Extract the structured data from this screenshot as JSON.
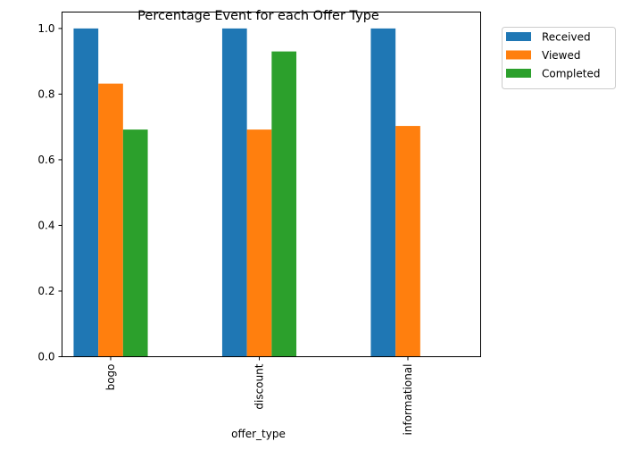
{
  "chart_data": {
    "type": "bar",
    "title": "Percentage Event for each Offer Type",
    "xlabel": "offer_type",
    "ylabel": "",
    "categories": [
      "bogo",
      "discount",
      "informational"
    ],
    "series": [
      {
        "name": "Received",
        "color": "#1f77b4",
        "values": [
          1.0,
          1.0,
          1.0
        ]
      },
      {
        "name": "Viewed",
        "color": "#ff7f0e",
        "values": [
          0.832,
          0.692,
          0.703
        ]
      },
      {
        "name": "Completed",
        "color": "#2ca02c",
        "values": [
          0.692,
          0.93,
          0
        ]
      }
    ],
    "ylim": [
      0,
      1.05
    ],
    "yticks": [
      "0.0",
      "0.2",
      "0.4",
      "0.6",
      "0.8",
      "1.0"
    ],
    "grid": false,
    "legend_position": "outside-top-right"
  }
}
